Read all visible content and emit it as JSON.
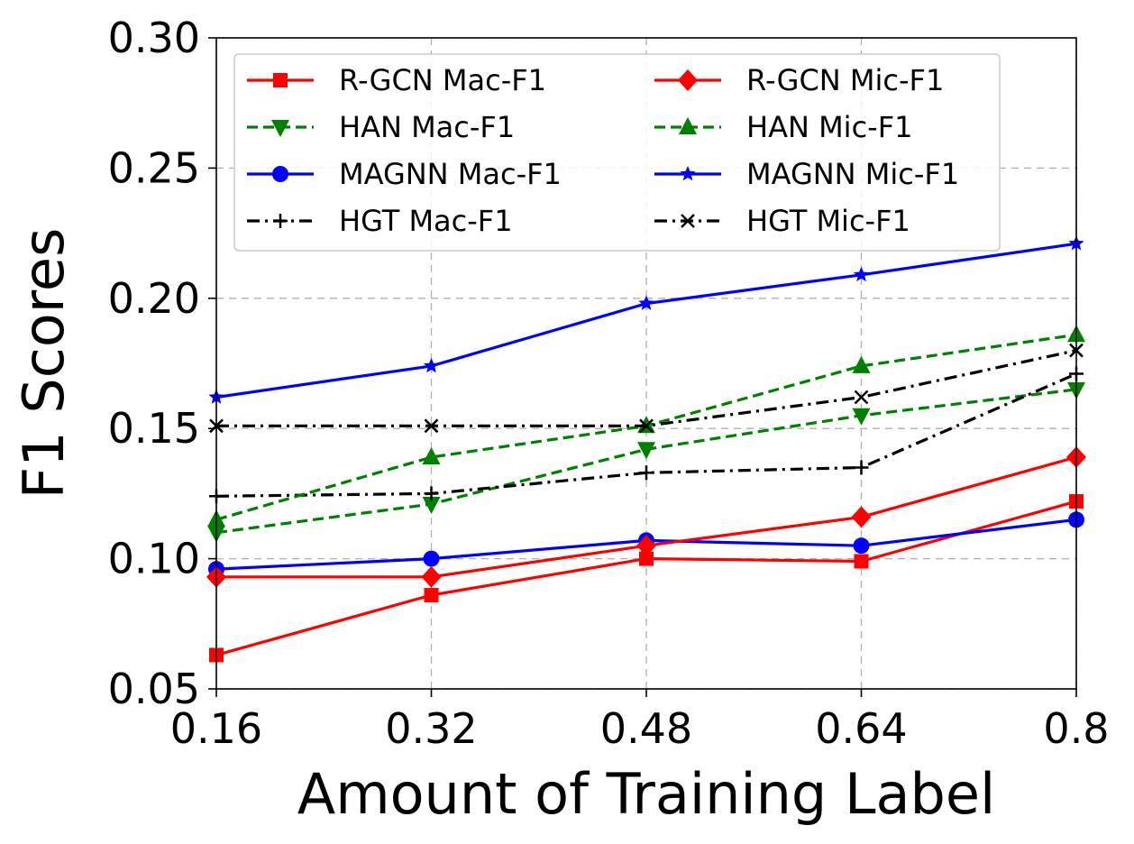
{
  "chart_data": {
    "type": "line",
    "title": "",
    "xlabel": "Amount of Training Label",
    "ylabel": "F1 Scores",
    "x": [
      0.16,
      0.32,
      0.48,
      0.64,
      0.8
    ],
    "x_tick_labels": [
      "0.16",
      "0.32",
      "0.48",
      "0.64",
      "0.8"
    ],
    "y_ticks": [
      0.05,
      0.1,
      0.15,
      0.2,
      0.25,
      0.3
    ],
    "y_tick_labels": [
      "0.05",
      "0.10",
      "0.15",
      "0.20",
      "0.25",
      "0.30"
    ],
    "xlim": [
      0.16,
      0.8
    ],
    "ylim": [
      0.05,
      0.3
    ],
    "grid": true,
    "legend_position": "top-left",
    "series": [
      {
        "name": "R-GCN Mac-F1",
        "values": [
          0.063,
          0.086,
          0.1,
          0.099,
          0.122
        ],
        "color": "#ff0000",
        "linestyle": "solid",
        "marker": "square"
      },
      {
        "name": "HAN Mac-F1",
        "values": [
          0.11,
          0.121,
          0.142,
          0.155,
          0.165
        ],
        "color": "#008000",
        "linestyle": "dashed",
        "marker": "triangle-down"
      },
      {
        "name": "MAGNN Mac-F1",
        "values": [
          0.096,
          0.1,
          0.107,
          0.105,
          0.115
        ],
        "color": "#0000ff",
        "linestyle": "solid",
        "marker": "circle"
      },
      {
        "name": "HGT Mac-F1",
        "values": [
          0.124,
          0.125,
          0.133,
          0.135,
          0.171
        ],
        "color": "#000000",
        "linestyle": "dashdot",
        "marker": "plus"
      },
      {
        "name": "R-GCN Mic-F1",
        "values": [
          0.093,
          0.093,
          0.105,
          0.116,
          0.139
        ],
        "color": "#ff0000",
        "linestyle": "solid",
        "marker": "diamond"
      },
      {
        "name": "HAN Mic-F1",
        "values": [
          0.115,
          0.139,
          0.151,
          0.174,
          0.186
        ],
        "color": "#008000",
        "linestyle": "dashed",
        "marker": "triangle-up"
      },
      {
        "name": "MAGNN Mic-F1",
        "values": [
          0.162,
          0.174,
          0.198,
          0.209,
          0.221
        ],
        "color": "#0000ff",
        "linestyle": "solid",
        "marker": "star"
      },
      {
        "name": "HGT Mic-F1",
        "values": [
          0.151,
          0.151,
          0.151,
          0.162,
          0.18
        ],
        "color": "#000000",
        "linestyle": "dashdot",
        "marker": "x"
      }
    ]
  }
}
